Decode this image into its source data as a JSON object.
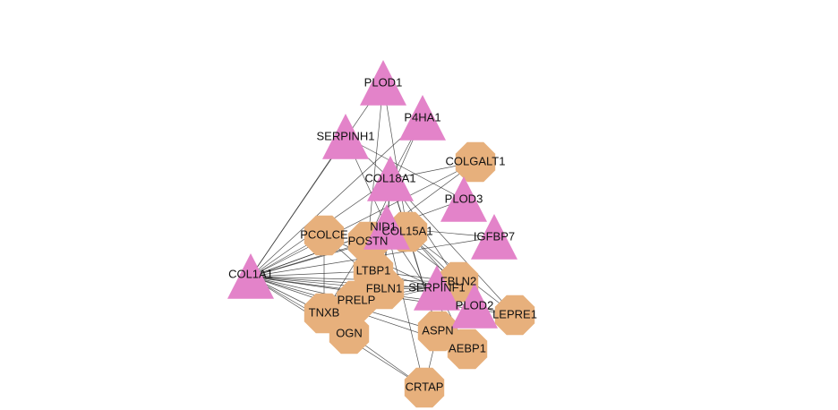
{
  "graph": {
    "colors": {
      "triangle": "#e383c9",
      "octagon": "#e7b07c",
      "edge": "#333333",
      "label": "#111111"
    },
    "nodes": [
      {
        "id": "PLOD1",
        "label": "PLOD1",
        "shape": "triangle"
      },
      {
        "id": "P4HA1",
        "label": "P4HA1",
        "shape": "triangle"
      },
      {
        "id": "SERPINH1",
        "label": "SERPINH1",
        "shape": "triangle"
      },
      {
        "id": "COL18A1",
        "label": "COL18A1",
        "shape": "triangle"
      },
      {
        "id": "PLOD3",
        "label": "PLOD3",
        "shape": "triangle"
      },
      {
        "id": "IGFBP7",
        "label": "IGFBP7",
        "shape": "triangle"
      },
      {
        "id": "COL1A1",
        "label": "COL1A1",
        "shape": "triangle"
      },
      {
        "id": "SERPINF1",
        "label": "SERPINF1",
        "shape": "triangle"
      },
      {
        "id": "PLOD2",
        "label": "PLOD2",
        "shape": "triangle"
      },
      {
        "id": "NID1",
        "label": "NID1",
        "shape": "triangle"
      },
      {
        "id": "COLGALT1",
        "label": "COLGALT1",
        "shape": "octagon"
      },
      {
        "id": "PCOLCE",
        "label": "PCOLCE",
        "shape": "octagon"
      },
      {
        "id": "POSTN",
        "label": "POSTN",
        "shape": "octagon"
      },
      {
        "id": "COL15A1",
        "label": "COL15A1",
        "shape": "octagon"
      },
      {
        "id": "LTBP1",
        "label": "LTBP1",
        "shape": "octagon"
      },
      {
        "id": "FBLN1",
        "label": "FBLN1",
        "shape": "octagon"
      },
      {
        "id": "FBLN2",
        "label": "FBLN2",
        "shape": "octagon"
      },
      {
        "id": "PRELP",
        "label": "PRELP",
        "shape": "octagon"
      },
      {
        "id": "TNXB",
        "label": "TNXB",
        "shape": "octagon"
      },
      {
        "id": "OGN",
        "label": "OGN",
        "shape": "octagon"
      },
      {
        "id": "ASPN",
        "label": "ASPN",
        "shape": "octagon"
      },
      {
        "id": "AEBP1",
        "label": "AEBP1",
        "shape": "octagon"
      },
      {
        "id": "LEPRE1",
        "label": "LEPRE1",
        "shape": "octagon"
      },
      {
        "id": "CRTAP",
        "label": "CRTAP",
        "shape": "octagon"
      }
    ],
    "edges": [
      [
        "COL1A1",
        "PLOD1"
      ],
      [
        "COL1A1",
        "P4HA1"
      ],
      [
        "COL1A1",
        "SERPINH1"
      ],
      [
        "COL1A1",
        "COL18A1"
      ],
      [
        "COL1A1",
        "COLGALT1"
      ],
      [
        "COL1A1",
        "PLOD3"
      ],
      [
        "COL1A1",
        "IGFBP7"
      ],
      [
        "COL1A1",
        "PCOLCE"
      ],
      [
        "COL1A1",
        "POSTN"
      ],
      [
        "COL1A1",
        "NID1"
      ],
      [
        "COL1A1",
        "COL15A1"
      ],
      [
        "COL1A1",
        "LTBP1"
      ],
      [
        "COL1A1",
        "FBLN1"
      ],
      [
        "COL1A1",
        "FBLN2"
      ],
      [
        "COL1A1",
        "SERPINF1"
      ],
      [
        "COL1A1",
        "PLOD2"
      ],
      [
        "COL1A1",
        "LEPRE1"
      ],
      [
        "COL1A1",
        "PRELP"
      ],
      [
        "COL1A1",
        "TNXB"
      ],
      [
        "COL1A1",
        "OGN"
      ],
      [
        "COL1A1",
        "ASPN"
      ],
      [
        "COL1A1",
        "AEBP1"
      ],
      [
        "COL1A1",
        "CRTAP"
      ],
      [
        "PLOD1",
        "POSTN"
      ],
      [
        "PLOD1",
        "COL15A1"
      ],
      [
        "P4HA1",
        "COL18A1"
      ],
      [
        "P4HA1",
        "POSTN"
      ],
      [
        "SERPINH1",
        "COL18A1"
      ],
      [
        "SERPINH1",
        "PLOD3"
      ],
      [
        "SERPINH1",
        "NID1"
      ],
      [
        "COL18A1",
        "NID1"
      ],
      [
        "COL18A1",
        "COL15A1"
      ],
      [
        "COL18A1",
        "FBLN1"
      ],
      [
        "COL18A1",
        "FBLN2"
      ],
      [
        "COL18A1",
        "COLGALT1"
      ],
      [
        "COL18A1",
        "ASPN"
      ],
      [
        "COL18A1",
        "LEPRE1"
      ],
      [
        "NID1",
        "FBLN1"
      ],
      [
        "NID1",
        "FBLN2"
      ],
      [
        "NID1",
        "POSTN"
      ],
      [
        "NID1",
        "LTBP1"
      ],
      [
        "NID1",
        "AEBP1"
      ],
      [
        "NID1",
        "IGFBP7"
      ],
      [
        "NID1",
        "CRTAP"
      ],
      [
        "COL15A1",
        "FBLN2"
      ],
      [
        "COL15A1",
        "PLOD2"
      ],
      [
        "COL15A1",
        "ASPN"
      ],
      [
        "COL15A1",
        "LEPRE1"
      ],
      [
        "POSTN",
        "LTBP1"
      ],
      [
        "POSTN",
        "FBLN1"
      ],
      [
        "POSTN",
        "TNXB"
      ],
      [
        "POSTN",
        "COLGALT1"
      ],
      [
        "PCOLCE",
        "FBLN1"
      ],
      [
        "PCOLCE",
        "PLOD2"
      ],
      [
        "PCOLCE",
        "TNXB"
      ],
      [
        "LTBP1",
        "FBLN1"
      ],
      [
        "LTBP1",
        "FBLN2"
      ],
      [
        "LTBP1",
        "SERPINF1"
      ],
      [
        "FBLN1",
        "FBLN2"
      ],
      [
        "FBLN1",
        "PRELP"
      ],
      [
        "FBLN1",
        "SERPINF1"
      ],
      [
        "PRELP",
        "TNXB"
      ],
      [
        "PRELP",
        "OGN"
      ],
      [
        "PRELP",
        "FBLN2"
      ],
      [
        "TNXB",
        "OGN"
      ],
      [
        "TNXB",
        "FBLN2"
      ],
      [
        "OGN",
        "CRTAP"
      ],
      [
        "ASPN",
        "CRTAP"
      ],
      [
        "FBLN2",
        "PLOD2"
      ],
      [
        "FBLN2",
        "SERPINF1"
      ],
      [
        "PLOD2",
        "LEPRE1"
      ],
      [
        "SERPINF1",
        "AEBP1"
      ]
    ]
  }
}
